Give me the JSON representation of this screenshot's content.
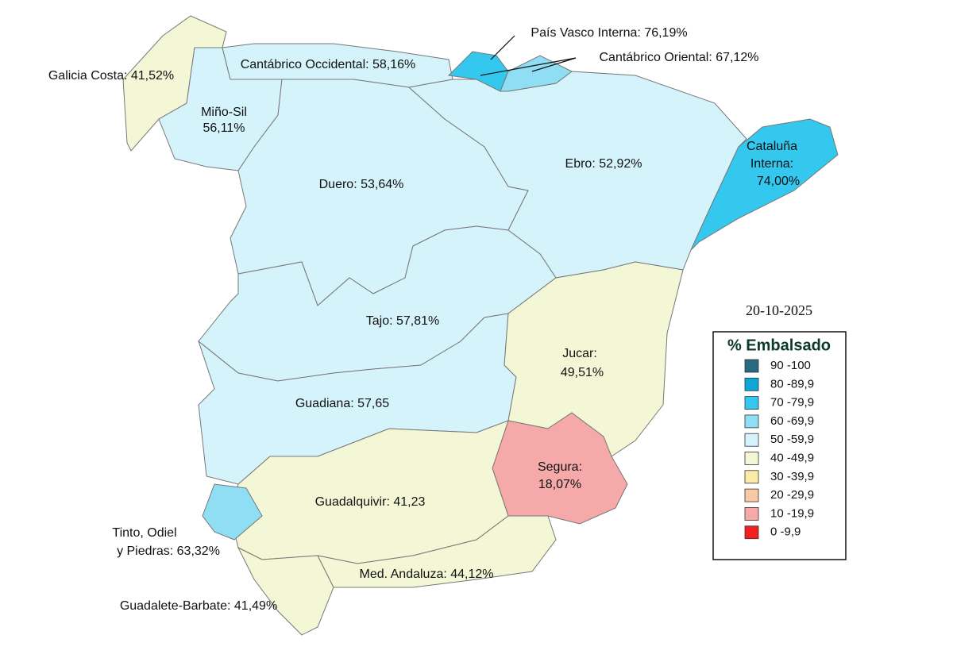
{
  "regions": [
    {
      "label": [
        "Galicia Costa: 41,52%"
      ],
      "color": "#f4f7d6"
    },
    {
      "label": [
        "Miño-Sil",
        "56,11%"
      ],
      "color": "#d5f3fb"
    },
    {
      "label": [
        "Cantábrico Occidental: 58,16%"
      ],
      "color": "#d5f3fb"
    },
    {
      "label": [
        "País Vasco Interna: 76,19%"
      ],
      "color": "#34c8ee"
    },
    {
      "label": [
        "Cantábrico Oriental: 67,12%"
      ],
      "color": "#8fdef4"
    },
    {
      "label": [
        "Duero: 53,64%"
      ],
      "color": "#d5f3fb"
    },
    {
      "label": [
        "Ebro: 52,92%"
      ],
      "color": "#d5f3fb"
    },
    {
      "label": [
        "Cataluña",
        "Interna:",
        "74,00%"
      ],
      "color": "#34c8ee"
    },
    {
      "label": [
        "Tajo: 57,81%"
      ],
      "color": "#d5f3fb"
    },
    {
      "label": [
        "Guadiana: 57,65"
      ],
      "color": "#d5f3fb"
    },
    {
      "label": [
        "Jucar:",
        "49,51%"
      ],
      "color": "#f4f7d6"
    },
    {
      "label": [
        "Segura:",
        "18,07%"
      ],
      "color": "#f5a9a9"
    },
    {
      "label": [
        "Guadalquivir: 41,23"
      ],
      "color": "#f4f7d6"
    },
    {
      "label": [
        "Tinto, Odiel",
        "y Piedras: 63,32%"
      ],
      "color": "#8fdef4"
    },
    {
      "label": [
        "Guadalete-Barbate: 41,49%"
      ],
      "color": "#f4f7d6"
    },
    {
      "label": [
        "Med. Andaluza: 44,12%"
      ],
      "color": "#f4f7d6"
    }
  ],
  "date": "20-10-2025",
  "legend": {
    "title": "% Embalsado",
    "items": [
      {
        "label": "90 -100",
        "color": "#2a6a80"
      },
      {
        "label": "80 -89,9",
        "color": "#0ea5d8"
      },
      {
        "label": "70 -79,9",
        "color": "#34c8ee"
      },
      {
        "label": "60 -69,9",
        "color": "#8fdef4"
      },
      {
        "label": "50 -59,9",
        "color": "#d5f3fb"
      },
      {
        "label": "40 -49,9",
        "color": "#f4f7d6"
      },
      {
        "label": "30 -39,9",
        "color": "#fbeaa8"
      },
      {
        "label": "20 -29,9",
        "color": "#f9c9a4"
      },
      {
        "label": "10 -19,9",
        "color": "#f5a9a9"
      },
      {
        "label": "0 -9,9",
        "color": "#f22020"
      }
    ]
  }
}
